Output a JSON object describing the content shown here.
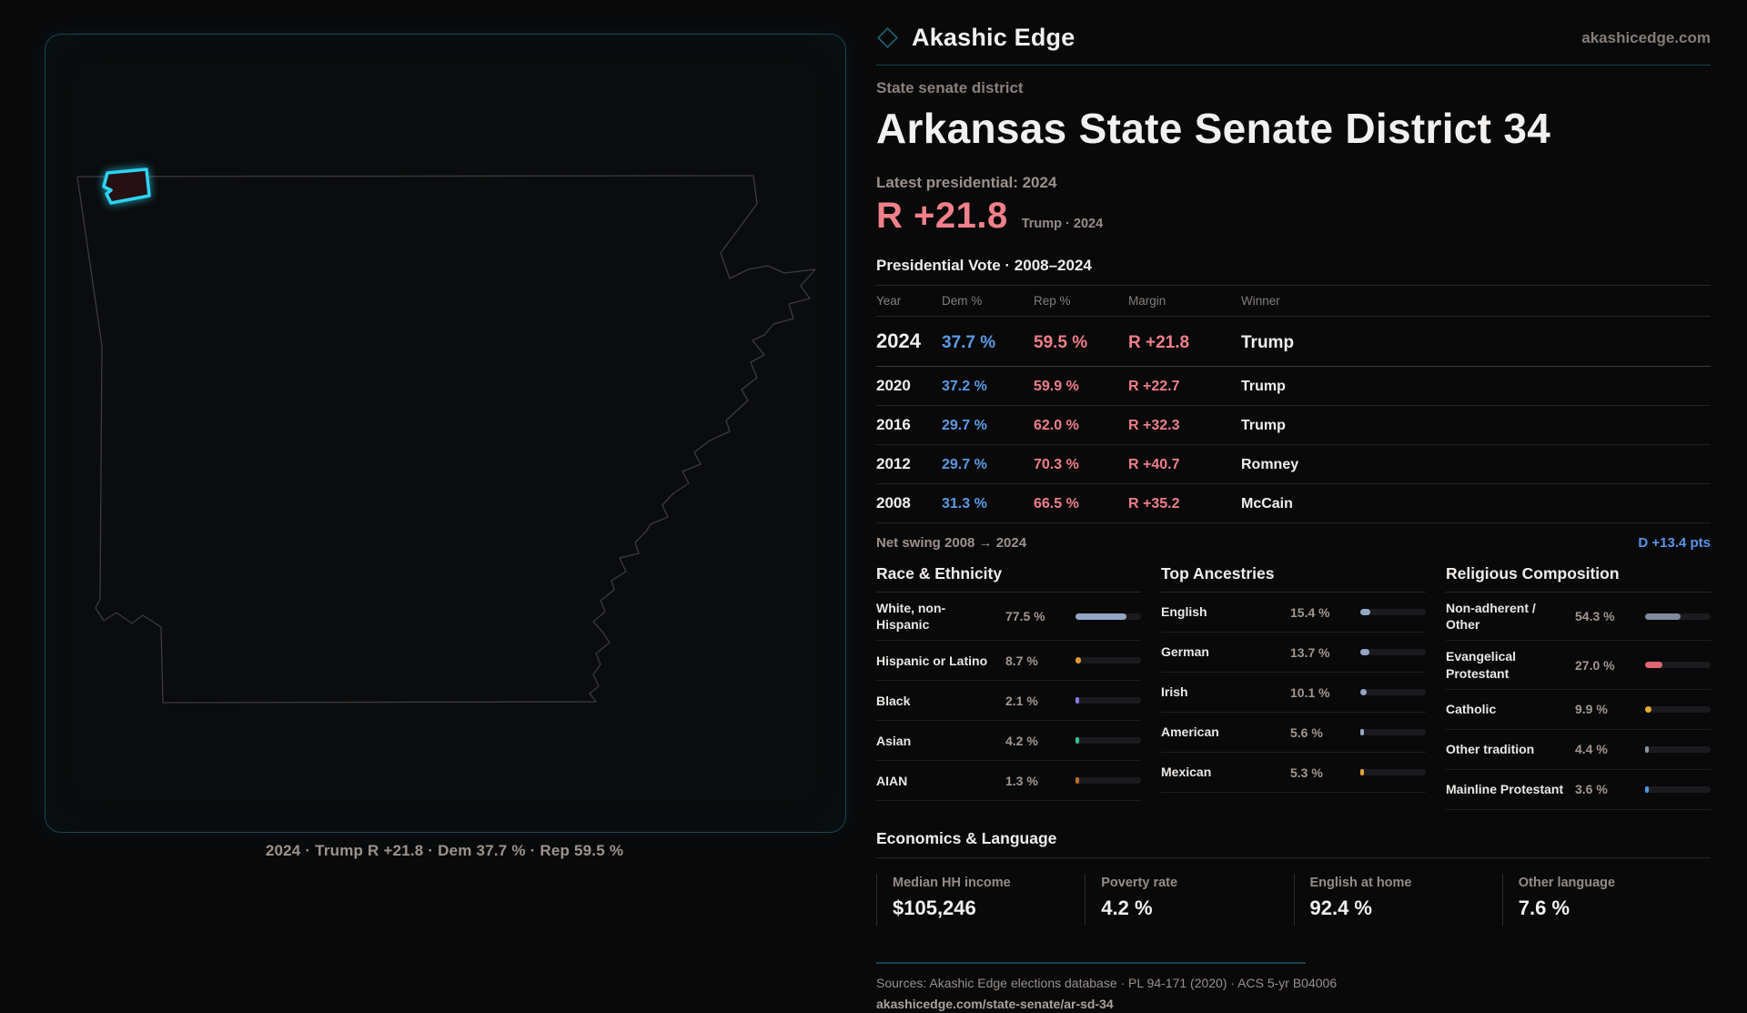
{
  "brand": {
    "name": "Akashic Edge",
    "domain": "akashicedge.com"
  },
  "page": {
    "kicker": "State senate district",
    "title": "Arkansas State Senate District 34",
    "latest_label": "Latest presidential: 2024",
    "headline_margin": "R +21.8",
    "headline_context": "Trump · 2024"
  },
  "vote_meta": {
    "net_swing_label": "Net swing 2008 → 2024",
    "net_swing_value": "D +13.4 pts"
  },
  "map": {
    "caption": "2024 · Trump R +21.8 · Dem 37.7 % · Rep 59.5 %",
    "highlight_color": "#2ed3f2",
    "outline_color": "#3b3b3e"
  },
  "economics": {
    "title": "Economics & Language",
    "stats": [
      {
        "label": "Median HH income",
        "value": "$105,246"
      },
      {
        "label": "Poverty rate",
        "value": "4.2 %"
      },
      {
        "label": "English at home",
        "value": "92.4 %"
      },
      {
        "label": "Other language",
        "value": "7.6 %"
      }
    ]
  },
  "footer": {
    "sources": "Sources: Akashic Edge elections database · PL 94-171 (2020) · ACS 5-yr B04006",
    "permalink": "akashicedge.com/state-senate/ar-sd-34"
  },
  "colors": {
    "dem_blue": "#5b9ae4",
    "rep_red": "#ef7f89",
    "swing_blue": "#5b94e8",
    "accent_teal": "#2ed3f2"
  },
  "chart_data": [
    {
      "type": "table",
      "title": "Presidential Vote · 2008–2024",
      "columns": [
        "Year",
        "Dem %",
        "Rep %",
        "Margin",
        "Winner"
      ],
      "rows": [
        [
          "2024",
          "37.7 %",
          "59.5 %",
          "R +21.8",
          "Trump"
        ],
        [
          "2020",
          "37.2 %",
          "59.9 %",
          "R +22.7",
          "Trump"
        ],
        [
          "2016",
          "29.7 %",
          "62.0 %",
          "R +32.3",
          "Trump"
        ],
        [
          "2012",
          "29.7 %",
          "70.3 %",
          "R +40.7",
          "Romney"
        ],
        [
          "2008",
          "31.3 %",
          "66.5 %",
          "R +35.2",
          "McCain"
        ]
      ]
    },
    {
      "type": "bar",
      "key": "race",
      "title": "Race & Ethnicity",
      "categories": [
        "White, non-\nHispanic",
        "Hispanic or Latino",
        "Black",
        "Asian",
        "AIAN"
      ],
      "values": [
        77.5,
        8.7,
        2.1,
        4.2,
        1.3
      ],
      "value_labels": [
        "77.5 %",
        "8.7 %",
        "2.1 %",
        "4.2 %",
        "1.3 %"
      ],
      "colors": [
        "#93a7c4",
        "#df9a33",
        "#8a79e8",
        "#34c48e",
        "#c06a2e"
      ],
      "xlim": [
        0,
        100
      ]
    },
    {
      "type": "bar",
      "key": "ancestries",
      "title": "Top Ancestries",
      "categories": [
        "English",
        "German",
        "Irish",
        "American",
        "Mexican"
      ],
      "values": [
        15.4,
        13.7,
        10.1,
        5.6,
        5.3
      ],
      "value_labels": [
        "15.4 %",
        "13.7 %",
        "10.1 %",
        "5.6 %",
        "5.3 %"
      ],
      "colors": [
        "#93a7c4",
        "#93a7c4",
        "#93a7c4",
        "#93a7c4",
        "#dfa433"
      ],
      "xlim": [
        0,
        100
      ]
    },
    {
      "type": "bar",
      "key": "religion",
      "title": "Religious Composition",
      "categories": [
        "Non-adherent /\nOther",
        "Evangelical\nProtestant",
        "Catholic",
        "Other tradition",
        "Mainline Protestant"
      ],
      "values": [
        54.3,
        27.0,
        9.9,
        4.4,
        3.6
      ],
      "value_labels": [
        "54.3 %",
        "27.0 %",
        "9.9 %",
        "4.4 %",
        "3.6 %"
      ],
      "colors": [
        "#7f8b9d",
        "#e06570",
        "#e3ae2f",
        "#8b939c",
        "#4f94e0"
      ],
      "xlim": [
        0,
        100
      ]
    }
  ]
}
